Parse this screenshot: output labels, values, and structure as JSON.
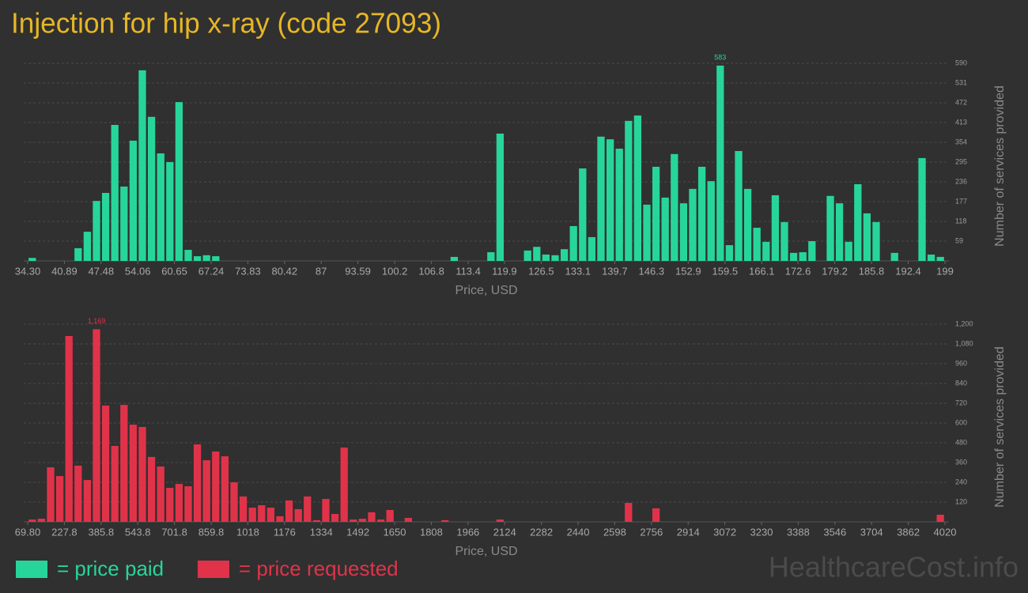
{
  "title": "Injection for hip x-ray (code 27093)",
  "watermark": "HealthcareCost.info",
  "chart_data": [
    {
      "type": "histogram",
      "color": "#27d59a",
      "legend_label": "= price paid",
      "xlabel": "Price, USD",
      "ylabel": "Number of services provided",
      "peak_label": "583",
      "grid": true,
      "bins": [
        34.3,
        35.95,
        37.59,
        39.24,
        40.89,
        42.54,
        44.18,
        45.83,
        47.48,
        49.12,
        50.77,
        52.42,
        54.06,
        55.71,
        57.36,
        59.01,
        60.65,
        62.3,
        63.95,
        65.59,
        67.24,
        68.89,
        70.53,
        72.18,
        73.83,
        75.48,
        77.12,
        78.77,
        80.42,
        82.06,
        83.71,
        85.36,
        87.0,
        88.65,
        90.3,
        91.95,
        93.59,
        95.24,
        96.89,
        98.53,
        100.18,
        101.83,
        103.47,
        105.12,
        106.77,
        108.42,
        110.06,
        111.71,
        113.36,
        115.0,
        116.65,
        118.3,
        119.94,
        121.59,
        123.24,
        124.89,
        126.53,
        128.18,
        129.83,
        131.47,
        133.12,
        134.77,
        136.41,
        138.06,
        139.71,
        141.36,
        143.0,
        144.65,
        146.3,
        147.94,
        149.59,
        151.24,
        152.88,
        154.53,
        156.18,
        157.83,
        159.47,
        161.12,
        162.77,
        164.41,
        166.06,
        167.71,
        169.35,
        171.0,
        172.65,
        174.3,
        175.94,
        177.59,
        179.24,
        180.88,
        182.53,
        184.18,
        185.82,
        187.47,
        189.12,
        190.77,
        192.41,
        194.06,
        195.71,
        197.35,
        199.0
      ],
      "values": [
        9,
        0,
        0,
        0,
        0,
        38,
        87,
        179,
        203,
        406,
        222,
        359,
        569,
        430,
        321,
        295,
        474,
        33,
        14,
        17,
        14,
        0,
        0,
        0,
        0,
        0,
        0,
        0,
        0,
        0,
        0,
        0,
        0,
        0,
        0,
        0,
        0,
        0,
        0,
        0,
        0,
        0,
        0,
        0,
        0,
        0,
        12,
        0,
        0,
        0,
        26,
        380,
        0,
        0,
        31,
        42,
        19,
        17,
        35,
        104,
        276,
        71,
        371,
        363,
        335,
        418,
        434,
        168,
        281,
        189,
        319,
        172,
        215,
        281,
        238,
        583,
        47,
        328,
        215,
        99,
        57,
        196,
        116,
        24,
        26,
        59,
        0,
        194,
        172,
        57,
        229,
        142,
        116,
        0,
        24,
        0,
        0,
        307,
        19,
        12
      ],
      "xlim": [
        34.3,
        199
      ],
      "ylim": [
        0,
        590
      ],
      "xticks": [
        {
          "value": 34.3,
          "label": "34.30"
        },
        40.89,
        47.48,
        54.06,
        60.65,
        67.24,
        73.83,
        80.42,
        87,
        93.59,
        100.2,
        106.8,
        113.4,
        119.9,
        126.5,
        133.1,
        139.7,
        146.3,
        152.9,
        159.5,
        166.1,
        172.6,
        179.2,
        185.8,
        192.4,
        199
      ],
      "yticks": [
        59,
        118,
        177,
        236,
        295,
        354,
        413,
        472,
        531,
        590
      ]
    },
    {
      "type": "histogram",
      "color": "#e0334a",
      "legend_label": "= price requested",
      "xlabel": "Price, USD",
      "ylabel": "Number of services provided",
      "peak_label": "1,169",
      "grid": true,
      "bins": [
        69.8,
        109.3,
        148.8,
        188.3,
        227.8,
        267.3,
        306.8,
        346.3,
        385.8,
        425.3,
        464.8,
        504.3,
        543.8,
        583.3,
        622.8,
        662.3,
        701.8,
        741.3,
        780.8,
        820.3,
        859.8,
        899.3,
        938.8,
        978.3,
        1017.8,
        1057.3,
        1096.8,
        1136.3,
        1175.8,
        1215.3,
        1254.8,
        1294.3,
        1333.8,
        1373.3,
        1412.8,
        1452.3,
        1491.8,
        1531.3,
        1570.8,
        1610.3,
        1649.8,
        1689.3,
        1728.8,
        1768.3,
        1807.8,
        1847.3,
        1886.8,
        1926.3,
        1965.8,
        2005.3,
        2044.8,
        2084.3,
        2123.8,
        2163.3,
        2202.8,
        2242.3,
        2281.8,
        2321.3,
        2360.8,
        2400.3,
        2439.8,
        2479.3,
        2518.8,
        2558.3,
        2597.8,
        2637.3,
        2676.8,
        2716.3,
        2755.8,
        2795.3,
        2834.8,
        2874.3,
        2913.8,
        2953.3,
        2992.8,
        3032.3,
        3071.8,
        3111.3,
        3150.8,
        3190.3,
        3229.8,
        3269.3,
        3308.8,
        3348.3,
        3387.8,
        3427.3,
        3466.8,
        3506.3,
        3545.8,
        3585.3,
        3624.8,
        3664.3,
        3703.8,
        3743.3,
        3782.8,
        3822.3,
        3861.8,
        3901.3,
        3940.8,
        3980.3,
        4019.8
      ],
      "values": [
        14,
        19,
        331,
        278,
        1128,
        341,
        254,
        1169,
        706,
        461,
        710,
        590,
        576,
        394,
        336,
        206,
        230,
        216,
        470,
        374,
        427,
        398,
        240,
        154,
        86,
        101,
        86,
        34,
        130,
        77,
        154,
        10,
        139,
        48,
        451,
        14,
        19,
        58,
        14,
        72,
        0,
        24,
        0,
        0,
        0,
        10,
        0,
        0,
        0,
        0,
        0,
        14,
        0,
        0,
        0,
        0,
        0,
        0,
        0,
        0,
        0,
        0,
        0,
        0,
        0,
        115,
        0,
        0,
        82,
        0,
        0,
        0,
        0,
        0,
        0,
        0,
        0,
        0,
        0,
        0,
        0,
        0,
        0,
        0,
        0,
        0,
        0,
        0,
        0,
        0,
        0,
        0,
        0,
        0,
        0,
        0,
        0,
        0,
        0,
        43
      ],
      "xlim": [
        69.8,
        4020
      ],
      "ylim": [
        0,
        1200
      ],
      "xticks": [
        {
          "value": 69.8,
          "label": "69.80"
        },
        227.8,
        385.8,
        543.8,
        701.8,
        859.8,
        1018,
        1176,
        1334,
        1492,
        1650,
        1808,
        1966,
        2124,
        2282,
        2440,
        2598,
        2756,
        2914,
        3072,
        3230,
        3388,
        3546,
        3704,
        3862,
        4020
      ],
      "yticks": [
        120,
        240,
        360,
        480,
        600,
        720,
        840,
        960,
        {
          "value": 1080,
          "label": "1,080"
        },
        {
          "value": 1200,
          "label": "1,200"
        }
      ]
    }
  ]
}
